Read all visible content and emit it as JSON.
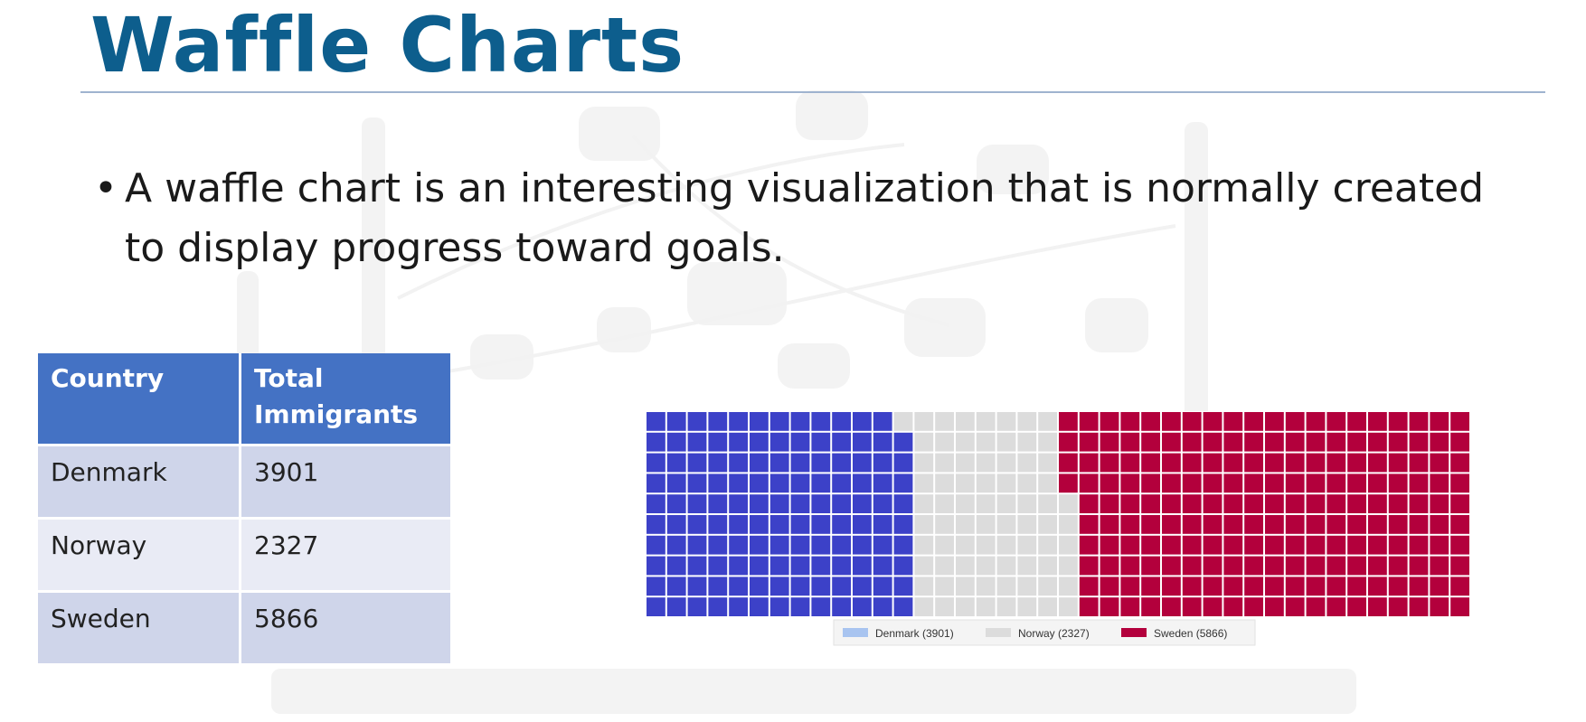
{
  "slide": {
    "title": "Waffle Charts",
    "bullet": "A waffle chart is an interesting visualization that is normally created to display progress toward goals."
  },
  "table": {
    "headers": [
      "Country",
      "Total Immigrants"
    ],
    "rows": [
      [
        "Denmark",
        "3901"
      ],
      [
        "Norway",
        "2327"
      ],
      [
        "Sweden",
        "5866"
      ]
    ]
  },
  "colors": {
    "title": "#0d5e8d",
    "table_header": "#4472c4",
    "denmark": "#3c41c8",
    "norway": "#dcdcdc",
    "sweden": "#b3003c"
  },
  "chart_data": {
    "type": "waffle",
    "grid": {
      "rows": 10,
      "columns": 40
    },
    "categories": [
      "Denmark",
      "Norway",
      "Sweden"
    ],
    "values": [
      3901,
      2327,
      5866
    ],
    "tiles": [
      129,
      77,
      194
    ],
    "colors": [
      "#3c41c8",
      "#dcdcdc",
      "#b3003c"
    ],
    "legend": {
      "position": "bottom-center",
      "entries": [
        "Denmark (3901)",
        "Norway (2327)",
        "Sweden (5866)"
      ]
    }
  }
}
